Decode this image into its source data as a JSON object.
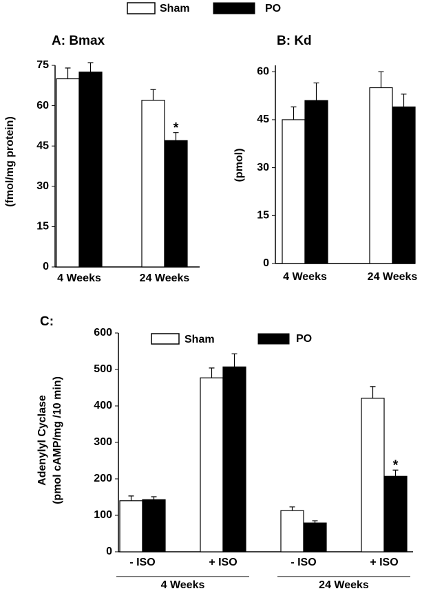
{
  "chart_data": [
    {
      "type": "bar",
      "title": "A: Bmax",
      "ylabel": "(fmol/mg protein)",
      "categories": [
        "4 Weeks",
        "24 Weeks"
      ],
      "series": [
        {
          "name": "Sham",
          "color": "#ffffff",
          "values": [
            70,
            62
          ],
          "errors": [
            4,
            4
          ]
        },
        {
          "name": "PO",
          "color": "#000000",
          "values": [
            72.5,
            47
          ],
          "errors": [
            3.5,
            3
          ]
        }
      ],
      "ylim": [
        0,
        75
      ],
      "yticks": [
        0,
        15,
        30,
        45,
        60,
        75
      ],
      "annotations": [
        {
          "text": "*",
          "category": "24 Weeks",
          "series": "PO"
        }
      ]
    },
    {
      "type": "bar",
      "title": "B: Kd",
      "ylabel": "(pmol)",
      "categories": [
        "4 Weeks",
        "24 Weeks"
      ],
      "series": [
        {
          "color": "#ffffff",
          "values": [
            45,
            55
          ],
          "errors": [
            4,
            5
          ]
        },
        {
          "color": "#000000",
          "values": [
            51,
            49
          ],
          "errors": [
            5.5,
            4
          ]
        }
      ],
      "ylim": [
        0,
        62
      ],
      "yticks": [
        0,
        15,
        30,
        45,
        60
      ]
    },
    {
      "type": "bar",
      "title": "C:",
      "ylabel": [
        "Adenylyl Cyclase",
        "(pmol cAMP/mg /10 min)"
      ],
      "categories": [
        "- ISO",
        "+ ISO",
        "- ISO",
        "+ ISO"
      ],
      "groups": [
        "4 Weeks",
        "24 Weeks"
      ],
      "series": [
        {
          "name": "Sham",
          "color": "#ffffff",
          "values": [
            140,
            477,
            113,
            421
          ],
          "errors": [
            13,
            27,
            10,
            32
          ]
        },
        {
          "name": "PO",
          "color": "#000000",
          "values": [
            143,
            507,
            79,
            207
          ],
          "errors": [
            8,
            36,
            6,
            17
          ]
        }
      ],
      "ylim": [
        0,
        600
      ],
      "yticks": [
        0,
        100,
        200,
        300,
        400,
        500,
        600
      ],
      "annotations": [
        {
          "text": "*",
          "group": "24 Weeks",
          "category": "+ ISO",
          "series": "PO"
        }
      ]
    }
  ]
}
